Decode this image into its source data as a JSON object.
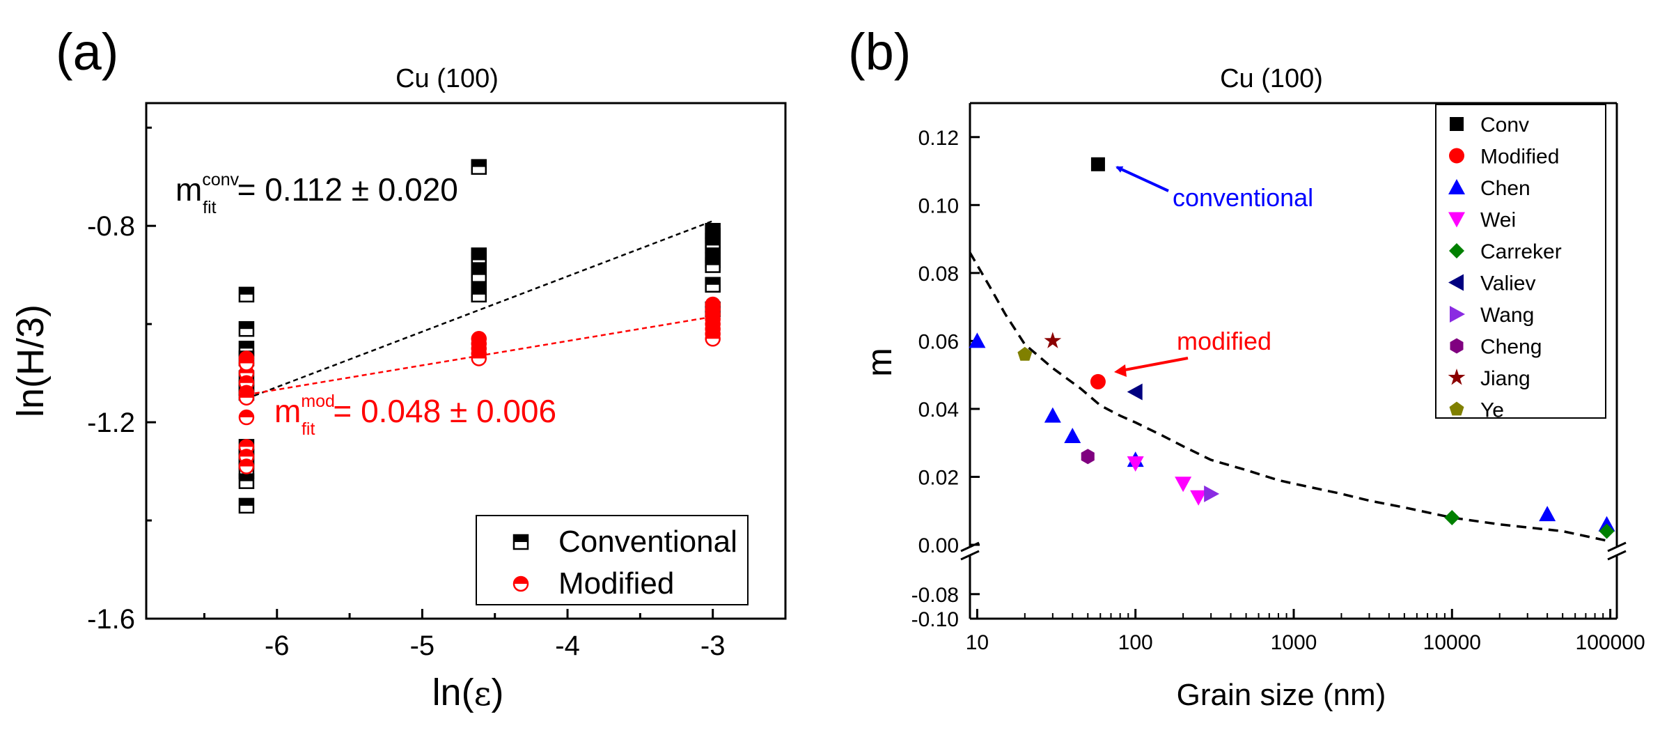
{
  "chart_data": [
    {
      "type": "scatter",
      "panel_label": "(a)",
      "title": "Cu (100)",
      "xlabel": "ln(",
      "xlabel_symbol": "ε",
      "xlabel_close": ")",
      "ylabel": "ln(H/3)",
      "xlim": [
        -6.9,
        -2.5
      ],
      "ylim": [
        -1.6,
        -0.55
      ],
      "xticks": [
        -6,
        -5,
        -4,
        -3
      ],
      "xtick_labels": [
        "-6",
        "-5",
        "-4",
        "-3"
      ],
      "yticks": [
        -1.6,
        -1.2,
        -0.8
      ],
      "ytick_labels": [
        "-1.6",
        "-1.2",
        "-0.8"
      ],
      "series": [
        {
          "name": "Conventional",
          "color": "#000000",
          "marker": "half-filled-square",
          "x": [
            -6.21,
            -6.21,
            -6.21,
            -6.21,
            -6.21,
            -6.21,
            -6.21,
            -6.21,
            -6.21,
            -6.21,
            -6.21,
            -6.21,
            -6.21,
            -4.61,
            -4.61,
            -4.61,
            -4.61,
            -4.61,
            -4.61,
            -4.61,
            -3.0,
            -3.0,
            -3.0,
            -3.0,
            -3.0,
            -3.0,
            -3.0,
            -3.0,
            -3.0
          ],
          "y": [
            -0.94,
            -1.01,
            -1.05,
            -1.07,
            -1.11,
            -1.13,
            -1.14,
            -1.25,
            -1.27,
            -1.28,
            -1.3,
            -1.32,
            -1.37,
            -0.68,
            -0.86,
            -0.87,
            -0.89,
            -0.9,
            -0.93,
            -0.94,
            -0.81,
            -0.82,
            -0.83,
            -0.84,
            -0.86,
            -0.87,
            -0.88,
            -0.92,
            -0.97
          ]
        },
        {
          "name": "Modified",
          "color": "#ff0000",
          "marker": "half-filled-circle",
          "x": [
            -6.21,
            -6.21,
            -6.21,
            -6.21,
            -6.21,
            -6.21,
            -6.21,
            -6.21,
            -6.21,
            -6.21,
            -6.21,
            -4.61,
            -4.61,
            -4.61,
            -4.61,
            -4.61,
            -3.0,
            -3.0,
            -3.0,
            -3.0,
            -3.0,
            -3.0,
            -3.0,
            -3.0
          ],
          "y": [
            -1.07,
            -1.08,
            -1.1,
            -1.12,
            -1.14,
            -1.15,
            -1.19,
            -1.25,
            -1.27,
            -1.29,
            -1.08,
            -1.03,
            -1.04,
            -1.05,
            -1.06,
            -1.07,
            -0.96,
            -0.97,
            -0.98,
            -0.99,
            -1.0,
            -1.01,
            -1.02,
            -1.03
          ]
        }
      ],
      "fit_lines": [
        {
          "name": "conv fit",
          "color": "#000000",
          "x": [
            -6.21,
            -3.0
          ],
          "y": [
            -1.152,
            -0.79
          ]
        },
        {
          "name": "mod fit",
          "color": "#ff0000",
          "x": [
            -6.21,
            -3.0
          ],
          "y": [
            -1.144,
            -0.985
          ]
        }
      ],
      "annotations": [
        {
          "main": "m",
          "sup": "conv",
          "sub": "fit",
          "text": "= 0.112 ± 0.020",
          "color": "#000000"
        },
        {
          "main": "m",
          "sup": "mod",
          "sub": "fit",
          "text": "= 0.048 ± 0.006",
          "color": "#ff0000"
        }
      ],
      "legend": [
        "Conventional",
        "Modified"
      ],
      "legend_position": "bottom-right"
    },
    {
      "type": "scatter",
      "panel_label": "(b)",
      "title": "Cu (100)",
      "xlabel": "Grain size (nm)",
      "ylabel": "m",
      "xscale": "log",
      "xlim": [
        9,
        110000
      ],
      "ylim_upper": [
        0.0,
        0.13
      ],
      "ylim_lower": [
        -0.1,
        -0.05
      ],
      "axis_break": "y between 0.00 and -0.08",
      "xtick_labels": [
        "10",
        "100",
        "1000",
        "10000",
        "100000"
      ],
      "xticks": [
        10,
        100,
        1000,
        10000,
        100000
      ],
      "ytick_labels_upper": [
        "0.00",
        "0.02",
        "0.04",
        "0.06",
        "0.08",
        "0.10",
        "0.12"
      ],
      "yticks_upper": [
        0.0,
        0.02,
        0.04,
        0.06,
        0.08,
        0.1,
        0.12
      ],
      "ytick_labels_lower": [
        "-0.08",
        "-0.10"
      ],
      "yticks_lower": [
        -0.08,
        -0.1
      ],
      "series": [
        {
          "name": "Conv",
          "color": "#000000",
          "marker": "square",
          "points": [
            [
              58,
              0.112
            ]
          ]
        },
        {
          "name": "Modified",
          "color": "#ff0000",
          "marker": "circle",
          "points": [
            [
              58,
              0.048
            ]
          ]
        },
        {
          "name": "Chen",
          "color": "#0000ff",
          "marker": "triangle-up",
          "points": [
            [
              10,
              0.06
            ],
            [
              30,
              0.038
            ],
            [
              40,
              0.032
            ],
            [
              100,
              0.025
            ],
            [
              40000,
              0.009
            ],
            [
              95000,
              0.006
            ]
          ]
        },
        {
          "name": "Wei",
          "color": "#ff00ff",
          "marker": "triangle-down",
          "points": [
            [
              100,
              0.024
            ],
            [
              200,
              0.018
            ],
            [
              250,
              0.014
            ]
          ]
        },
        {
          "name": "Carreker",
          "color": "#008000",
          "marker": "diamond",
          "points": [
            [
              10000,
              0.008
            ],
            [
              95000,
              0.004
            ]
          ]
        },
        {
          "name": "Valiev",
          "color": "#000080",
          "marker": "triangle-left",
          "points": [
            [
              100,
              0.045
            ]
          ]
        },
        {
          "name": "Wang",
          "color": "#8a2be2",
          "marker": "triangle-right",
          "points": [
            [
              300,
              0.015
            ]
          ]
        },
        {
          "name": "Cheng",
          "color": "#800080",
          "marker": "hexagon",
          "points": [
            [
              50,
              0.026
            ]
          ]
        },
        {
          "name": "Jiang",
          "color": "#8b0000",
          "marker": "star",
          "points": [
            [
              30,
              0.06
            ]
          ]
        },
        {
          "name": "Ye",
          "color": "#808000",
          "marker": "pentagon",
          "points": [
            [
              20,
              0.056
            ]
          ]
        }
      ],
      "trend_curve": {
        "style": "dashed",
        "color": "#000000",
        "x": [
          9,
          12,
          15,
          20,
          30,
          45,
          60,
          80,
          100,
          150,
          200,
          300,
          500,
          800,
          1000,
          2000,
          3000,
          5000,
          10000,
          20000,
          50000,
          100000
        ],
        "y": [
          0.086,
          0.076,
          0.068,
          0.059,
          0.052,
          0.046,
          0.041,
          0.038,
          0.036,
          0.032,
          0.029,
          0.025,
          0.022,
          0.019,
          0.018,
          0.015,
          0.013,
          0.011,
          0.008,
          0.006,
          0.004,
          0.001
        ]
      },
      "annotations": [
        {
          "text": "conventional",
          "color": "#0000ff",
          "points_to": [
            58,
            0.112
          ]
        },
        {
          "text": "modified",
          "color": "#ff0000",
          "points_to": [
            58,
            0.048
          ]
        }
      ],
      "legend": [
        "Conv",
        "Modified",
        "Chen",
        "Wei",
        "Carreker",
        "Valiev",
        "Wang",
        "Cheng",
        "Jiang",
        "Ye"
      ],
      "legend_position": "top-right"
    }
  ]
}
